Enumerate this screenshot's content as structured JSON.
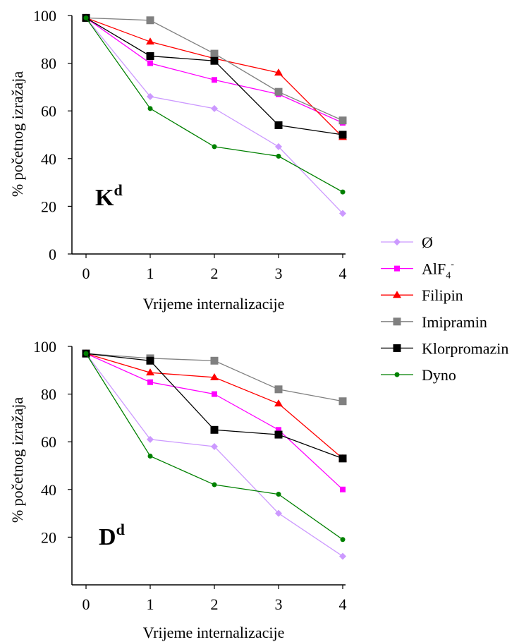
{
  "chart_data": [
    {
      "type": "line",
      "panel_label": "K",
      "panel_label_sup": "d",
      "xlabel": "Vrijeme internalizacije",
      "ylabel": "% početnog izražaja",
      "x": [
        0,
        1,
        2,
        3,
        4
      ],
      "xlim": [
        0,
        4
      ],
      "ylim": [
        0,
        100
      ],
      "yticks": [
        0,
        20,
        40,
        60,
        80,
        100
      ],
      "grid": false,
      "series": [
        {
          "name": "Ø",
          "color": "#cc99ff",
          "marker": "diamond",
          "values": [
            99,
            66,
            61,
            45,
            17
          ]
        },
        {
          "name": "AlF4-",
          "color": "#ff00ff",
          "marker": "square-small",
          "values": [
            99,
            80,
            73,
            67,
            55
          ]
        },
        {
          "name": "Filipin",
          "color": "#ff0000",
          "marker": "triangle",
          "values": [
            99,
            89,
            82,
            76,
            49
          ]
        },
        {
          "name": "Imipramin",
          "color": "#808080",
          "marker": "square",
          "values": [
            99,
            98,
            84,
            68,
            56
          ]
        },
        {
          "name": "Klorpromazin",
          "color": "#000000",
          "marker": "square",
          "values": [
            99,
            83,
            81,
            54,
            50
          ]
        },
        {
          "name": "Dyno",
          "color": "#008000",
          "marker": "circle",
          "values": [
            99,
            61,
            45,
            41,
            26
          ]
        }
      ]
    },
    {
      "type": "line",
      "panel_label": "D",
      "panel_label_sup": "d",
      "xlabel": "Vrijeme internalizacije",
      "ylabel": "% početnog izražaja",
      "x": [
        0,
        1,
        2,
        3,
        4
      ],
      "xlim": [
        0,
        4
      ],
      "ylim": [
        0,
        100
      ],
      "yticks": [
        20,
        40,
        60,
        80,
        100
      ],
      "grid": false,
      "series": [
        {
          "name": "Ø",
          "color": "#cc99ff",
          "marker": "diamond",
          "values": [
            97,
            61,
            58,
            30,
            12
          ]
        },
        {
          "name": "AlF4-",
          "color": "#ff00ff",
          "marker": "square-small",
          "values": [
            97,
            85,
            80,
            65,
            40
          ]
        },
        {
          "name": "Filipin",
          "color": "#ff0000",
          "marker": "triangle",
          "values": [
            97,
            89,
            87,
            76,
            53
          ]
        },
        {
          "name": "Imipramin",
          "color": "#808080",
          "marker": "square",
          "values": [
            97,
            95,
            94,
            82,
            77
          ]
        },
        {
          "name": "Klorpromazin",
          "color": "#000000",
          "marker": "square",
          "values": [
            97,
            94,
            65,
            63,
            53
          ]
        },
        {
          "name": "Dyno",
          "color": "#008000",
          "marker": "circle",
          "values": [
            97,
            54,
            42,
            38,
            19
          ]
        }
      ]
    }
  ],
  "legend": {
    "placement": "right",
    "items": [
      {
        "label": "Ø",
        "color": "#cc99ff",
        "marker": "diamond"
      },
      {
        "label": "AlF",
        "sub": "4",
        "sup": "-",
        "color": "#ff00ff",
        "marker": "square-small"
      },
      {
        "label": "Filipin",
        "color": "#ff0000",
        "marker": "triangle"
      },
      {
        "label": "Imipramin",
        "color": "#808080",
        "marker": "square"
      },
      {
        "label": "Klorpromazin",
        "color": "#000000",
        "marker": "square"
      },
      {
        "label": "Dyno",
        "color": "#008000",
        "marker": "circle"
      }
    ]
  }
}
